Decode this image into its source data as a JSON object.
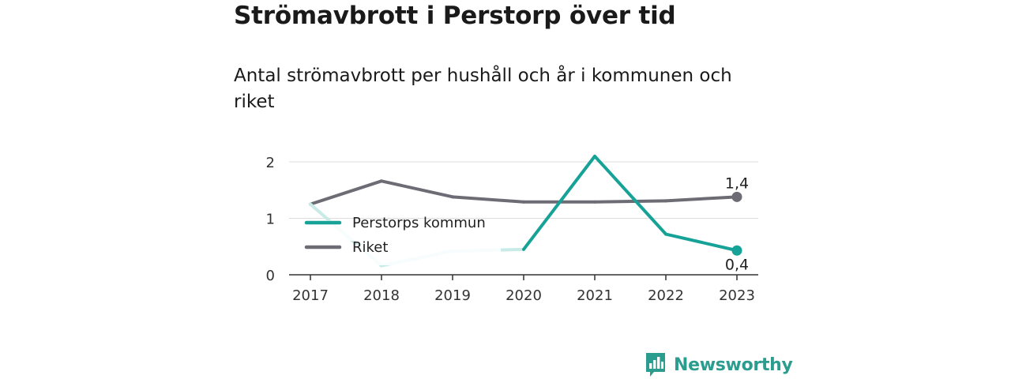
{
  "title": "Strömavbrott i Perstorp över tid",
  "subtitle": "Antal strömavbrott per hushåll och år i kommunen och riket",
  "brand": {
    "name": "Newsworthy",
    "color": "#2a9d8f",
    "icon": "bar-chart-speech-bubble-icon"
  },
  "chart_data": {
    "type": "line",
    "x": [
      "2017",
      "2018",
      "2019",
      "2020",
      "2021",
      "2022",
      "2023"
    ],
    "ylim": [
      0,
      2.2
    ],
    "yticks": [
      0,
      1,
      2
    ],
    "grid": true,
    "legend_position": "left",
    "series": [
      {
        "name": "Perstorps kommun",
        "values": [
          1.25,
          0.16,
          0.42,
          0.45,
          2.1,
          0.72,
          0.43
        ],
        "color": "#17a297",
        "faded_color": "#c8ebe8",
        "faded_segments": [
          [
            0,
            1
          ],
          [
            1,
            2
          ],
          [
            2,
            3
          ]
        ],
        "end_label": "0,4"
      },
      {
        "name": "Riket",
        "values": [
          1.25,
          1.66,
          1.38,
          1.29,
          1.29,
          1.31,
          1.38
        ],
        "color": "#6d6c75",
        "end_label": "1,4"
      }
    ]
  }
}
